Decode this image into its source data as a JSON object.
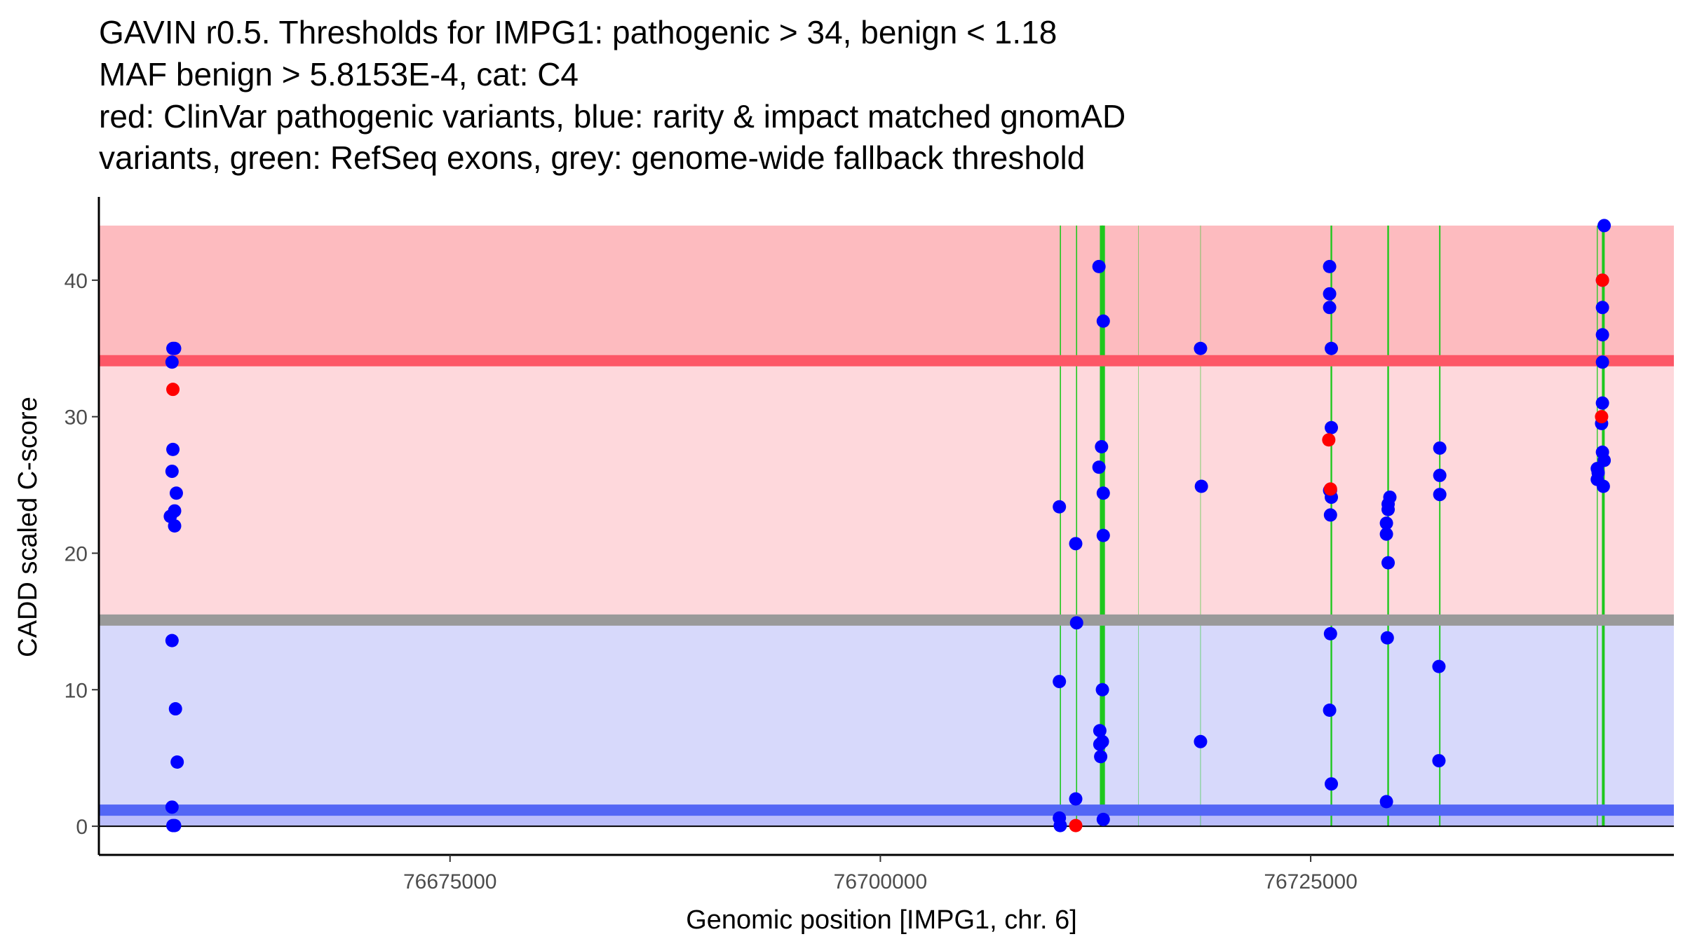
{
  "chart_data": {
    "type": "scatter",
    "title_lines": [
      "GAVIN r0.5. Thresholds for IMPG1: pathogenic > 34, benign < 1.18",
      "MAF benign > 5.8153E-4, cat: C4",
      "red: ClinVar pathogenic variants, blue: rarity & impact matched gnomAD",
      "variants, green: RefSeq exons, grey: genome-wide fallback threshold"
    ],
    "xlabel": "Genomic position [IMPG1, chr. 6]",
    "ylabel": "CADD scaled C-score",
    "xlim": [
      76654600,
      76746100
    ],
    "ylim": [
      -2.1,
      46.1
    ],
    "x_ticks": [
      76675000,
      76700000,
      76725000
    ],
    "x_tick_labels": [
      "76675000",
      "76700000",
      "76725000"
    ],
    "y_ticks": [
      0,
      10,
      20,
      30,
      40
    ],
    "y_tick_labels": [
      "0",
      "10",
      "20",
      "30",
      "40"
    ],
    "grid": false,
    "thresholds": {
      "pathogenic": 34,
      "benign": 1.18,
      "genome_wide_fallback": 15,
      "maf_benign": "5.8153E-4",
      "category": "C4"
    },
    "bands": [
      {
        "name": "pathogenic-zone",
        "y0": 34,
        "y1": 44,
        "color": "#fdbbbf"
      },
      {
        "name": "vus-zone",
        "y0": 15,
        "y1": 34,
        "color": "#fed8dc"
      },
      {
        "name": "benign-zone",
        "y0": 1.18,
        "y1": 15,
        "color": "#d7d9fb"
      },
      {
        "name": "benign-low-zone",
        "y0": 0,
        "y1": 1.18,
        "color": "#babdfa"
      }
    ],
    "threshold_lines": [
      {
        "name": "pathogenic-threshold-line",
        "y": 34.1,
        "color": "#fd5767"
      },
      {
        "name": "fallback-threshold-line",
        "y": 15.1,
        "color": "#9a9a9a"
      },
      {
        "name": "benign-threshold-line",
        "y": 1.18,
        "color": "#5366f5"
      }
    ],
    "exons": [
      {
        "x": 76710460,
        "weight": 1
      },
      {
        "x": 76711400,
        "weight": 1
      },
      {
        "x": 76712850,
        "weight": 3
      },
      {
        "x": 76712950,
        "weight": 3
      },
      {
        "x": 76715000,
        "weight": 0.5
      },
      {
        "x": 76718600,
        "weight": 0.6
      },
      {
        "x": 76726200,
        "weight": 1.5
      },
      {
        "x": 76729500,
        "weight": 1.5
      },
      {
        "x": 76732500,
        "weight": 1.2
      },
      {
        "x": 76741650,
        "weight": 0.8
      },
      {
        "x": 76742000,
        "weight": 2.5
      }
    ],
    "series": [
      {
        "name": "gnomAD matched variants",
        "color": "#0000ff",
        "points": [
          [
            76658900,
            35.0
          ],
          [
            76659000,
            35.0
          ],
          [
            76658850,
            34.0
          ],
          [
            76658900,
            27.6
          ],
          [
            76658850,
            26.0
          ],
          [
            76659100,
            24.4
          ],
          [
            76659000,
            23.1
          ],
          [
            76658750,
            22.7
          ],
          [
            76659000,
            22.0
          ],
          [
            76658850,
            13.6
          ],
          [
            76659050,
            8.6
          ],
          [
            76659150,
            4.7
          ],
          [
            76658850,
            1.4
          ],
          [
            76658900,
            0.05
          ],
          [
            76659000,
            0.05
          ],
          [
            76710400,
            23.4
          ],
          [
            76710400,
            10.6
          ],
          [
            76710400,
            0.6
          ],
          [
            76710450,
            0.05
          ],
          [
            76711350,
            20.7
          ],
          [
            76711400,
            14.9
          ],
          [
            76711350,
            2.0
          ],
          [
            76712700,
            41.0
          ],
          [
            76712950,
            37.0
          ],
          [
            76712850,
            27.8
          ],
          [
            76712700,
            26.3
          ],
          [
            76712950,
            24.4
          ],
          [
            76712950,
            21.3
          ],
          [
            76712900,
            10.0
          ],
          [
            76712750,
            7.0
          ],
          [
            76712750,
            6.0
          ],
          [
            76712900,
            6.2
          ],
          [
            76712800,
            5.1
          ],
          [
            76712950,
            0.5
          ],
          [
            76718600,
            35.0
          ],
          [
            76718650,
            24.9
          ],
          [
            76718600,
            6.2
          ],
          [
            76726100,
            41.0
          ],
          [
            76726100,
            39.0
          ],
          [
            76726100,
            38.0
          ],
          [
            76726200,
            35.0
          ],
          [
            76726200,
            29.2
          ],
          [
            76726150,
            24.6
          ],
          [
            76726200,
            24.1
          ],
          [
            76726100,
            24.6
          ],
          [
            76726150,
            22.8
          ],
          [
            76726150,
            14.1
          ],
          [
            76726100,
            8.5
          ],
          [
            76726200,
            3.1
          ],
          [
            76729600,
            24.1
          ],
          [
            76729500,
            23.6
          ],
          [
            76729500,
            23.2
          ],
          [
            76729400,
            22.2
          ],
          [
            76729400,
            21.4
          ],
          [
            76729500,
            19.3
          ],
          [
            76729450,
            13.8
          ],
          [
            76729400,
            1.8
          ],
          [
            76732500,
            27.7
          ],
          [
            76732500,
            25.7
          ],
          [
            76732500,
            24.3
          ],
          [
            76732450,
            11.7
          ],
          [
            76732450,
            4.8
          ],
          [
            76742050,
            44.0
          ],
          [
            76741950,
            40.0
          ],
          [
            76741950,
            38.0
          ],
          [
            76741950,
            36.0
          ],
          [
            76741950,
            34.0
          ],
          [
            76741950,
            31.0
          ],
          [
            76741900,
            29.5
          ],
          [
            76741950,
            27.4
          ],
          [
            76742050,
            26.8
          ],
          [
            76741650,
            26.2
          ],
          [
            76741700,
            25.9
          ],
          [
            76741650,
            25.4
          ],
          [
            76742000,
            24.9
          ]
        ]
      },
      {
        "name": "ClinVar pathogenic variants",
        "color": "#ff0000",
        "points": [
          [
            76658900,
            32.0
          ],
          [
            76711350,
            0.05
          ],
          [
            76726050,
            28.3
          ],
          [
            76726150,
            24.7
          ],
          [
            76741950,
            40.0
          ],
          [
            76741900,
            30.0
          ]
        ]
      }
    ],
    "legend": "none"
  }
}
